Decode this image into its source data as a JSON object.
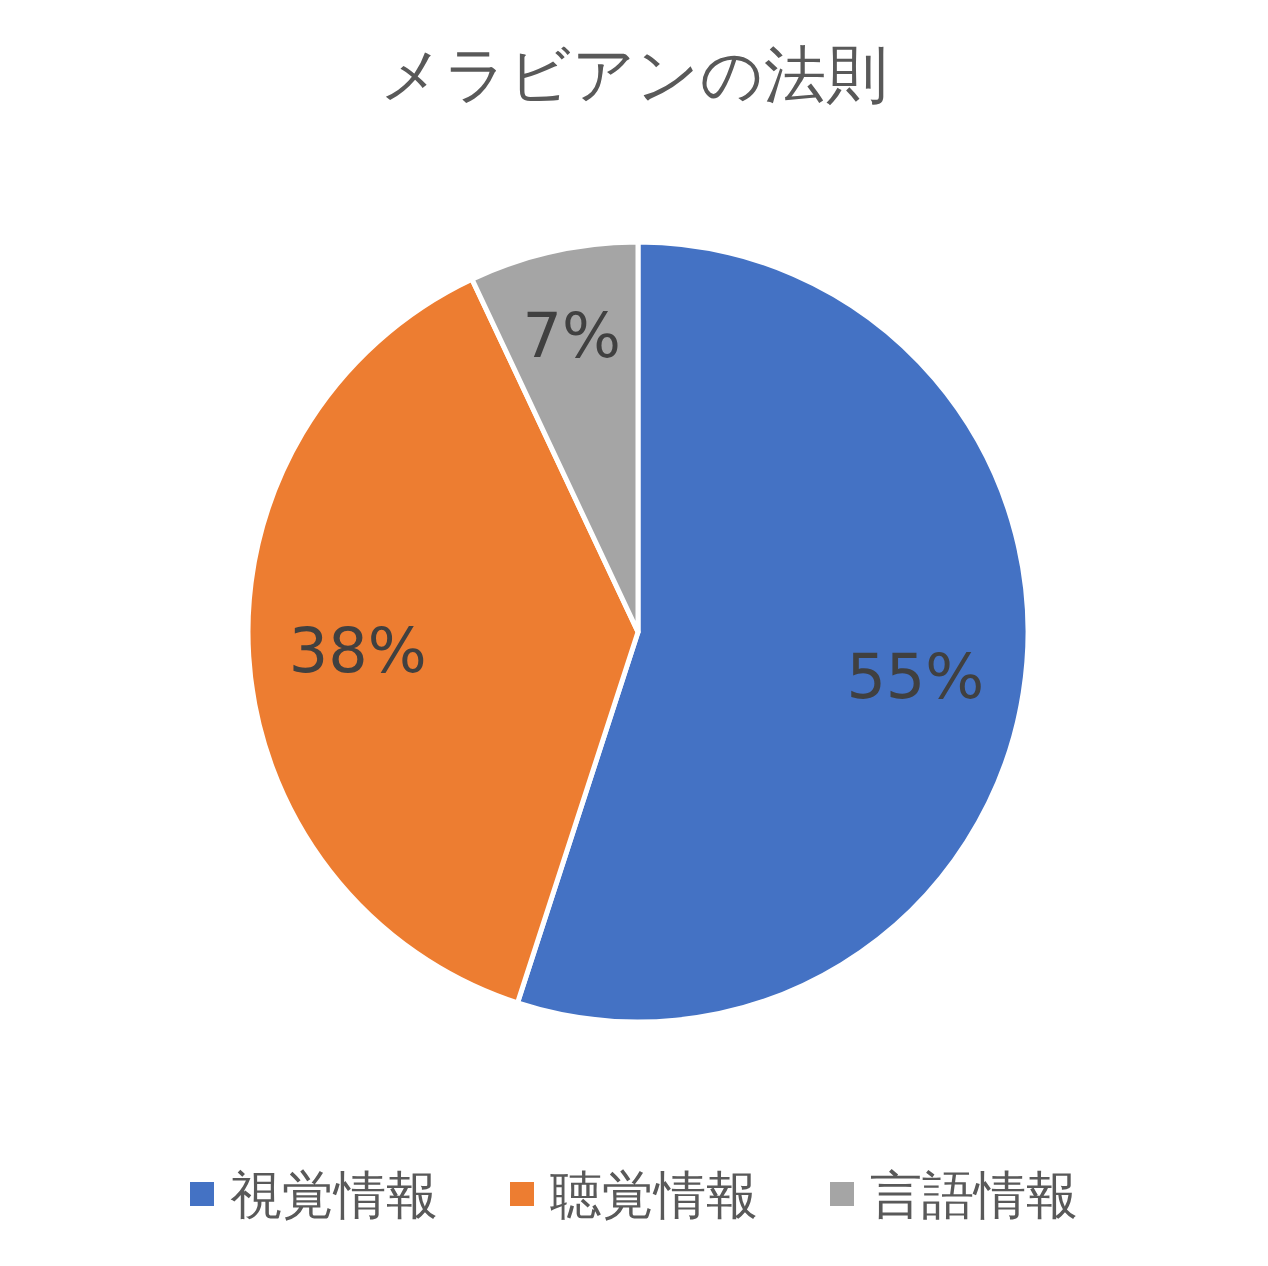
{
  "chart_data": {
    "type": "pie",
    "title": "メラビアンの法則",
    "categories": [
      "視覚情報",
      "聴覚情報",
      "言語情報"
    ],
    "values": [
      55,
      38,
      7
    ],
    "colors": [
      "#4472c4",
      "#ed7d31",
      "#a5a5a5"
    ],
    "value_labels": [
      "55%",
      "38%",
      "7%"
    ],
    "legend": "bottom"
  }
}
